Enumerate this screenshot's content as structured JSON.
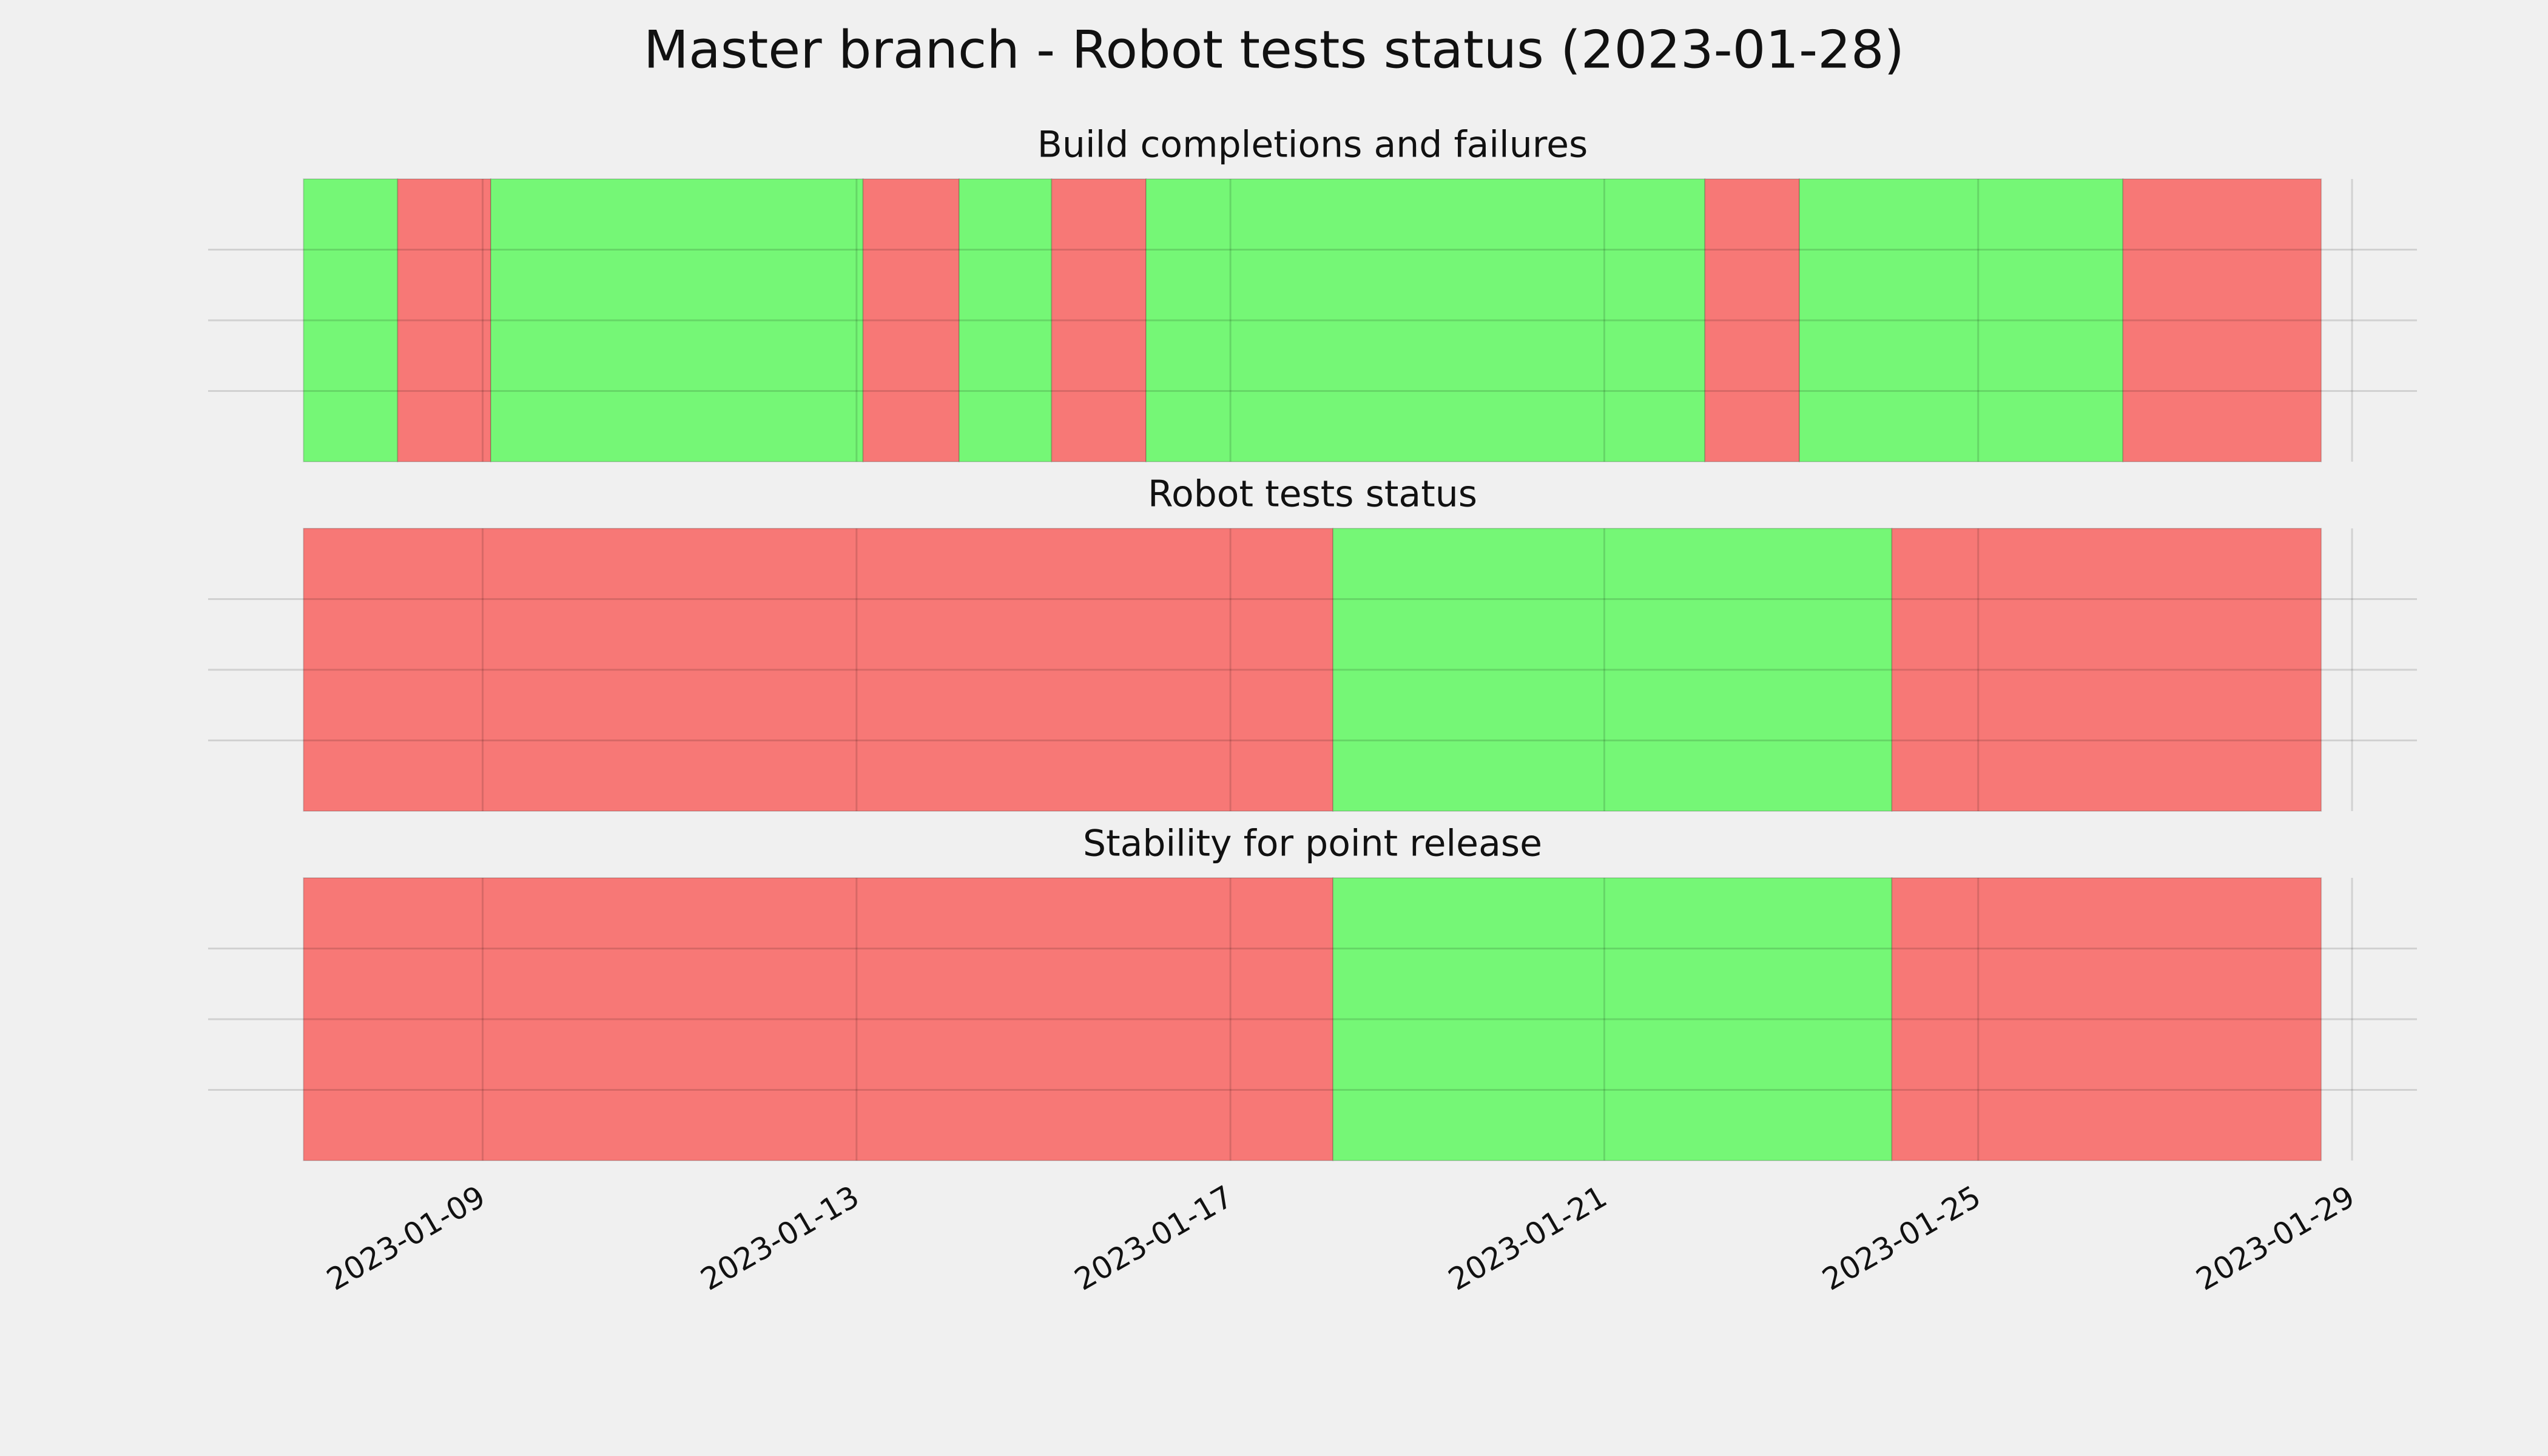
{
  "title": "Master branch - Robot tests status (2023-01-28)",
  "chart_data": [
    {
      "type": "timeline",
      "title": "Build completions and failures",
      "spans": [
        {
          "start": "2023-01-07T02:00",
          "end": "2023-01-08T02:10",
          "color": "#75f776"
        },
        {
          "start": "2023-01-08T02:10",
          "end": "2023-01-09T02:05",
          "color": "#f77876"
        },
        {
          "start": "2023-01-09T02:05",
          "end": "2023-01-13T01:40",
          "color": "#75f776"
        },
        {
          "start": "2023-01-13T01:40",
          "end": "2023-01-14T02:20",
          "color": "#f77876"
        },
        {
          "start": "2023-01-14T02:20",
          "end": "2023-01-15T02:05",
          "color": "#75f776"
        },
        {
          "start": "2023-01-15T02:05",
          "end": "2023-01-16T02:20",
          "color": "#f77876"
        },
        {
          "start": "2023-01-16T02:20",
          "end": "2023-01-22T01:50",
          "color": "#75f776"
        },
        {
          "start": "2023-01-22T01:50",
          "end": "2023-01-23T02:05",
          "color": "#f77876"
        },
        {
          "start": "2023-01-23T02:05",
          "end": "2023-01-26T13:10",
          "color": "#75f776"
        },
        {
          "start": "2023-01-26T13:10",
          "end": "2023-01-28T16:05",
          "color": "#f77876"
        }
      ],
      "xlim": [
        "2023-01-06T01:30",
        "2023-01-29T16:40"
      ],
      "xticks": [
        "2023-01-09",
        "2023-01-13",
        "2023-01-17",
        "2023-01-21",
        "2023-01-25",
        "2023-01-29"
      ],
      "ylim": [
        0,
        1
      ],
      "yticks": [
        0.25,
        0.5,
        0.75
      ],
      "grid": true
    },
    {
      "type": "timeline",
      "title": "Robot tests status",
      "spans": [
        {
          "start": "2023-01-07T02:00",
          "end": "2023-01-18T02:20",
          "color": "#f77876"
        },
        {
          "start": "2023-01-18T02:20",
          "end": "2023-01-24T01:50",
          "color": "#75f776"
        },
        {
          "start": "2023-01-24T01:50",
          "end": "2023-01-28T16:05",
          "color": "#f77876"
        }
      ],
      "xlim": [
        "2023-01-06T01:30",
        "2023-01-29T16:40"
      ],
      "xticks": [
        "2023-01-09",
        "2023-01-13",
        "2023-01-17",
        "2023-01-21",
        "2023-01-25",
        "2023-01-29"
      ],
      "ylim": [
        0,
        1
      ],
      "yticks": [
        0.25,
        0.5,
        0.75
      ],
      "grid": true
    },
    {
      "type": "timeline",
      "title": "Stability for point release",
      "spans": [
        {
          "start": "2023-01-07T02:00",
          "end": "2023-01-18T02:20",
          "color": "#f77876"
        },
        {
          "start": "2023-01-18T02:20",
          "end": "2023-01-24T01:50",
          "color": "#75f776"
        },
        {
          "start": "2023-01-24T01:50",
          "end": "2023-01-28T16:05",
          "color": "#f77876"
        }
      ],
      "xlim": [
        "2023-01-06T01:30",
        "2023-01-29T16:40"
      ],
      "xticks": [
        "2023-01-09",
        "2023-01-13",
        "2023-01-17",
        "2023-01-21",
        "2023-01-25",
        "2023-01-29"
      ],
      "ylim": [
        0,
        1
      ],
      "yticks": [
        0.25,
        0.5,
        0.75
      ],
      "grid": true
    }
  ]
}
